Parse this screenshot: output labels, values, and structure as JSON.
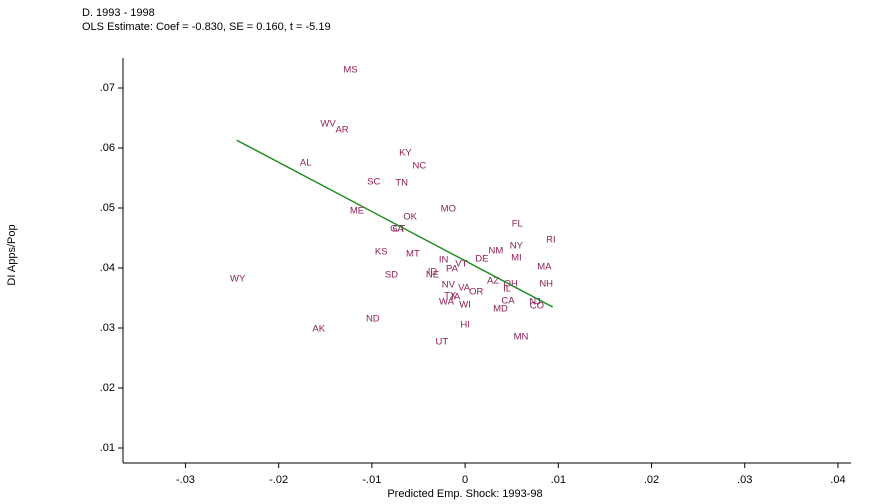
{
  "chart_data": {
    "type": "scatter",
    "title": "D. 1993 - 1998",
    "subtitle": "OLS Estimate: Coef = -0.830, SE = 0.160, t = -5.19",
    "x_label": "Predicted Emp. Shock: 1993-98",
    "y_label": "DI Apps/Pop",
    "xlim": [
      -0.0367,
      0.0414
    ],
    "ylim": [
      0.0075,
      0.075
    ],
    "xticks": [
      {
        "value": -0.03,
        "label": "-.03"
      },
      {
        "value": -0.02,
        "label": "-.02"
      },
      {
        "value": -0.01,
        "label": "-.01"
      },
      0,
      {
        "value": 0.01,
        "label": ".01"
      },
      {
        "value": 0.02,
        "label": ".02"
      },
      {
        "value": 0.03,
        "label": ".03"
      },
      {
        "value": 0.04,
        "label": ".04"
      }
    ],
    "yticks": [
      {
        "value": 0.01,
        "label": ".01"
      },
      {
        "value": 0.02,
        "label": ".02"
      },
      {
        "value": 0.03,
        "label": ".03"
      },
      {
        "value": 0.04,
        "label": ".04"
      },
      {
        "value": 0.05,
        "label": ".05"
      },
      {
        "value": 0.06,
        "label": ".06"
      },
      {
        "value": 0.07,
        "label": ".07"
      }
    ],
    "series": [
      {
        "type": "scatter",
        "color": "#8c1f55",
        "labels": [
          "MS",
          "WV",
          "AR",
          "KY",
          "AL",
          "NC",
          "SC",
          "TN",
          "ME",
          "MO",
          "OK",
          "GA",
          "CT",
          "FL",
          "RI",
          "NY",
          "NM",
          "KS",
          "MT",
          "MI",
          "DE",
          "IN",
          "VT",
          "MA",
          "PA",
          "ID",
          "NE",
          "SD",
          "WY",
          "AZ",
          "OH",
          "NV",
          "NH",
          "VA",
          "IL",
          "OR",
          "TX",
          "IA",
          "CA",
          "WA",
          "NJ",
          "WI",
          "CO",
          "MD",
          "ND",
          "HI",
          "AK",
          "MN",
          "UT"
        ],
        "x": [
          -0.0123,
          -0.0147,
          -0.0132,
          -0.0064,
          -0.0171,
          -0.0049,
          -0.0098,
          -0.0068,
          -0.0116,
          -0.0018,
          -0.0059,
          -0.0073,
          -0.0071,
          0.0056,
          0.0092,
          0.0055,
          0.0033,
          -0.009,
          -0.0056,
          0.0055,
          0.0018,
          -0.0023,
          -0.0004,
          0.0085,
          -0.0014,
          -0.0035,
          -0.0035,
          -0.0079,
          -0.0244,
          0.003,
          0.0049,
          -0.0018,
          0.0087,
          -0.0001,
          0.0045,
          0.0012,
          -0.0016,
          -0.001,
          0.0046,
          -0.002,
          0.0075,
          0,
          0.0077,
          0.0038,
          -0.0099,
          0,
          -0.0157,
          0.006,
          -0.0025
        ],
        "y": [
          0.073,
          0.064,
          0.063,
          0.0592,
          0.0575,
          0.057,
          0.0543,
          0.0542,
          0.0495,
          0.0498,
          0.0485,
          0.0465,
          0.0465,
          0.0473,
          0.0447,
          0.0437,
          0.0428,
          0.0427,
          0.0423,
          0.0417,
          0.0415,
          0.0413,
          0.0407,
          0.0402,
          0.0398,
          0.0393,
          0.0388,
          0.0388,
          0.0382,
          0.0378,
          0.0373,
          0.0372,
          0.0373,
          0.0367,
          0.0365,
          0.036,
          0.0353,
          0.0352,
          0.0345,
          0.0343,
          0.0343,
          0.0338,
          0.0337,
          0.0332,
          0.0315,
          0.0305,
          0.0298,
          0.0285,
          0.0277
        ]
      },
      {
        "type": "line",
        "color": "#1a8a1a",
        "x": [
          -0.0245,
          0.0094
        ],
        "y": [
          0.0613,
          0.0335
        ]
      }
    ]
  }
}
